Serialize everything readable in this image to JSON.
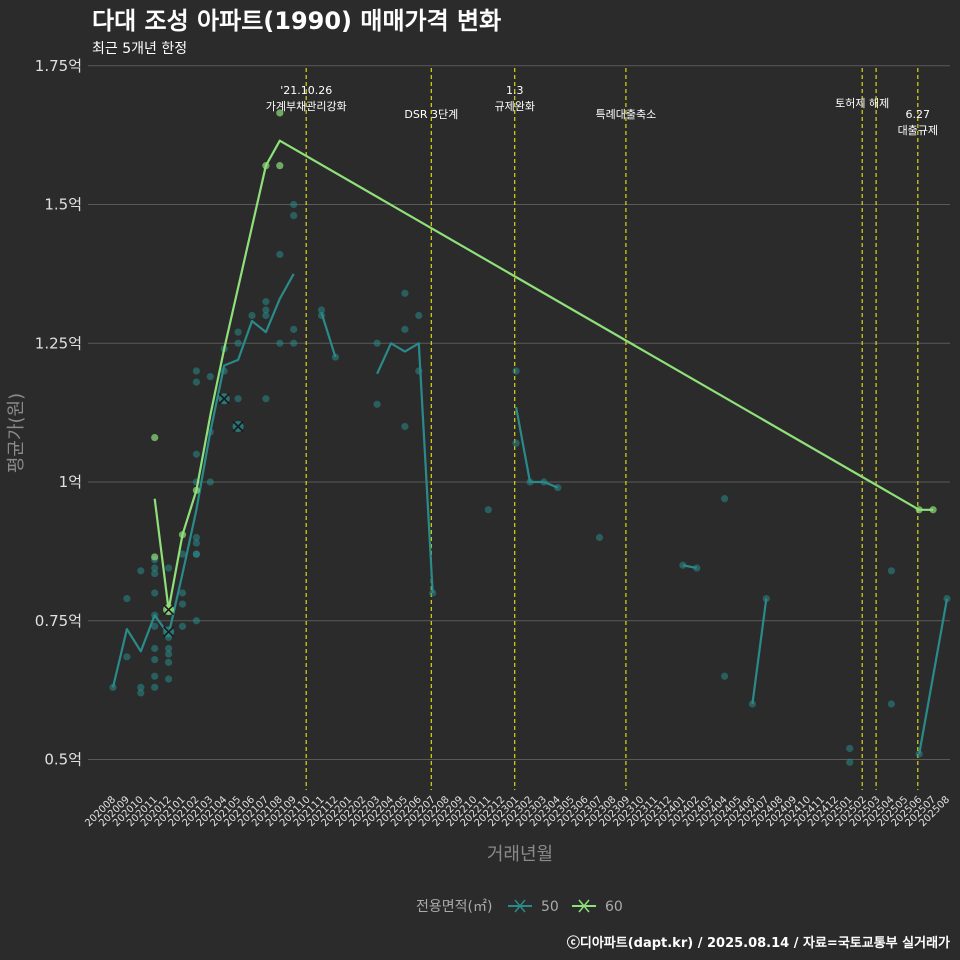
{
  "chart_data": {
    "type": "line",
    "title": "다대 조성 아파트(1990) 매매가격 변화",
    "subtitle": "최근 5개년 한정",
    "xlabel": "거래년월",
    "ylabel": "평균가(원)",
    "ylim": [
      0.43,
      1.77
    ],
    "y_ticks": [
      {
        "value": 0.5,
        "label": "0.5억"
      },
      {
        "value": 0.75,
        "label": "0.75억"
      },
      {
        "value": 1.0,
        "label": "1억"
      },
      {
        "value": 1.25,
        "label": "1.25억"
      },
      {
        "value": 1.5,
        "label": "1.5억"
      },
      {
        "value": 1.75,
        "label": "1.75억"
      }
    ],
    "x_categories": [
      "202008",
      "202009",
      "202010",
      "202011",
      "202012",
      "202101",
      "202102",
      "202103",
      "202104",
      "202105",
      "202106",
      "202107",
      "202108",
      "202109",
      "202110",
      "202111",
      "202112",
      "202201",
      "202202",
      "202203",
      "202204",
      "202205",
      "202206",
      "202207",
      "202208",
      "202209",
      "202210",
      "202211",
      "202212",
      "202301",
      "202302",
      "202303",
      "202304",
      "202305",
      "202306",
      "202307",
      "202308",
      "202309",
      "202310",
      "202311",
      "202312",
      "202401",
      "202402",
      "202403",
      "202404",
      "202405",
      "202406",
      "202407",
      "202408",
      "202409",
      "202410",
      "202411",
      "202412",
      "202501",
      "202502",
      "202503",
      "202504",
      "202505",
      "202506",
      "202507",
      "202508"
    ],
    "events": [
      {
        "index": 13.9,
        "lines": [
          "'21.10.26",
          "가계부채관리강화"
        ],
        "row": 0
      },
      {
        "index": 22.9,
        "lines": [
          "DSR 3단계"
        ],
        "row": 1
      },
      {
        "index": 28.9,
        "lines": [
          "1.3",
          "규제완화"
        ],
        "row": 0
      },
      {
        "index": 36.9,
        "lines": [
          "특례대출축소"
        ],
        "row": 1
      },
      {
        "index": 53.9,
        "lines": [
          "토허제 해제"
        ],
        "row": 0.55
      },
      {
        "index": 54.9,
        "lines": [],
        "row": 0
      },
      {
        "index": 57.9,
        "lines": [
          "6.27",
          "대출규제"
        ],
        "row": 1
      }
    ],
    "series": [
      {
        "name": "50",
        "color": "#2a8a8a",
        "line": [
          [
            0,
            0.63
          ],
          [
            1,
            0.735
          ],
          [
            2,
            0.695
          ],
          [
            3,
            0.76
          ],
          [
            4,
            0.725
          ],
          [
            5,
            0.835
          ],
          [
            6,
            0.95
          ],
          [
            7,
            1.09
          ],
          [
            8,
            1.21
          ],
          [
            9,
            1.22
          ],
          [
            10,
            1.29
          ],
          [
            11,
            1.27
          ],
          [
            12,
            1.33
          ],
          [
            13,
            1.375
          ],
          [
            null,
            null
          ],
          [
            15,
            1.305
          ],
          [
            16,
            1.225
          ],
          [
            null,
            null
          ],
          [
            19,
            1.195
          ],
          [
            20,
            1.25
          ],
          [
            21,
            1.235
          ],
          [
            22,
            1.25
          ],
          [
            23,
            0.8
          ],
          [
            null,
            null
          ],
          [
            29,
            1.135
          ],
          [
            30,
            1.0
          ],
          [
            31,
            1.0
          ],
          [
            32,
            0.99
          ],
          [
            null,
            null
          ],
          [
            41,
            0.85
          ],
          [
            42,
            0.845
          ],
          [
            null,
            null
          ],
          [
            46,
            0.6
          ],
          [
            47,
            0.79
          ],
          [
            null,
            null
          ],
          [
            58,
            0.51
          ],
          [
            60,
            0.79
          ]
        ],
        "points": [
          [
            0,
            0.63
          ],
          [
            1,
            0.79
          ],
          [
            1,
            0.685
          ],
          [
            2,
            0.84
          ],
          [
            2,
            0.63
          ],
          [
            2,
            0.62
          ],
          [
            3,
            0.86
          ],
          [
            3,
            0.845
          ],
          [
            3,
            0.835
          ],
          [
            3,
            0.8
          ],
          [
            3,
            0.76
          ],
          [
            3,
            0.74
          ],
          [
            3,
            0.7
          ],
          [
            3,
            0.68
          ],
          [
            3,
            0.65
          ],
          [
            3,
            0.63
          ],
          [
            4,
            0.845
          ],
          [
            4,
            0.72
          ],
          [
            4,
            0.7
          ],
          [
            4,
            0.69
          ],
          [
            4,
            0.675
          ],
          [
            4,
            0.645
          ],
          [
            5,
            0.87
          ],
          [
            5,
            0.8
          ],
          [
            5,
            0.78
          ],
          [
            5,
            0.74
          ],
          [
            6,
            1.2
          ],
          [
            6,
            1.18
          ],
          [
            6,
            1.05
          ],
          [
            6,
            1.0
          ],
          [
            6,
            0.9
          ],
          [
            6,
            0.89
          ],
          [
            6,
            0.87
          ],
          [
            6,
            0.87
          ],
          [
            6,
            0.75
          ],
          [
            7,
            1.19
          ],
          [
            7,
            1.09
          ],
          [
            7,
            1.0
          ],
          [
            8,
            1.24
          ],
          [
            8,
            1.2
          ],
          [
            9,
            1.27
          ],
          [
            9,
            1.25
          ],
          [
            9,
            1.15
          ],
          [
            10,
            1.3
          ],
          [
            11,
            1.325
          ],
          [
            11,
            1.31
          ],
          [
            11,
            1.3
          ],
          [
            11,
            1.15
          ],
          [
            12,
            1.41
          ],
          [
            12,
            1.25
          ],
          [
            13,
            1.5
          ],
          [
            13,
            1.48
          ],
          [
            13,
            1.275
          ],
          [
            13,
            1.25
          ],
          [
            15,
            1.31
          ],
          [
            15,
            1.3
          ],
          [
            16,
            1.225
          ],
          [
            19,
            1.25
          ],
          [
            19,
            1.14
          ],
          [
            21,
            1.34
          ],
          [
            21,
            1.275
          ],
          [
            21,
            1.1
          ],
          [
            22,
            1.3
          ],
          [
            22,
            1.2
          ],
          [
            23,
            0.8
          ],
          [
            27,
            0.95
          ],
          [
            29,
            1.2
          ],
          [
            29,
            1.07
          ],
          [
            30,
            1.0
          ],
          [
            31,
            1.0
          ],
          [
            32,
            0.99
          ],
          [
            35,
            0.9
          ],
          [
            41,
            0.85
          ],
          [
            42,
            0.845
          ],
          [
            44,
            0.97
          ],
          [
            44,
            0.65
          ],
          [
            46,
            0.6
          ],
          [
            47,
            0.79
          ],
          [
            53,
            0.52
          ],
          [
            53,
            0.495
          ],
          [
            56,
            0.84
          ],
          [
            56,
            0.6
          ],
          [
            58,
            0.51
          ],
          [
            60,
            0.79
          ]
        ],
        "cross_marks": [
          [
            4,
            0.73
          ],
          [
            8,
            1.15
          ],
          [
            9,
            1.1
          ]
        ]
      },
      {
        "name": "60",
        "color": "#8fe07a",
        "line": [
          [
            3,
            0.97
          ],
          [
            4,
            0.77
          ],
          [
            5,
            0.905
          ],
          [
            6,
            0.985
          ],
          [
            7,
            1.12
          ],
          [
            8,
            1.24
          ],
          [
            11,
            1.57
          ],
          [
            12,
            1.615
          ],
          [
            58,
            0.95
          ],
          [
            59,
            0.95
          ]
        ],
        "points": [
          [
            3,
            1.08
          ],
          [
            3,
            0.865
          ],
          [
            4,
            0.77
          ],
          [
            5,
            0.905
          ],
          [
            6,
            0.985
          ],
          [
            11,
            1.57
          ],
          [
            12,
            1.665
          ],
          [
            12,
            1.57
          ],
          [
            58,
            0.95
          ],
          [
            59,
            0.95
          ]
        ],
        "cross_marks": [
          [
            4,
            0.77
          ]
        ]
      }
    ],
    "legend": {
      "title": "전용면적(㎡)",
      "position": "bottom"
    }
  },
  "caption": "ⓒ디아파트(dapt.kr) / 2025.08.14 / 자료=국토교통부 실거래가"
}
